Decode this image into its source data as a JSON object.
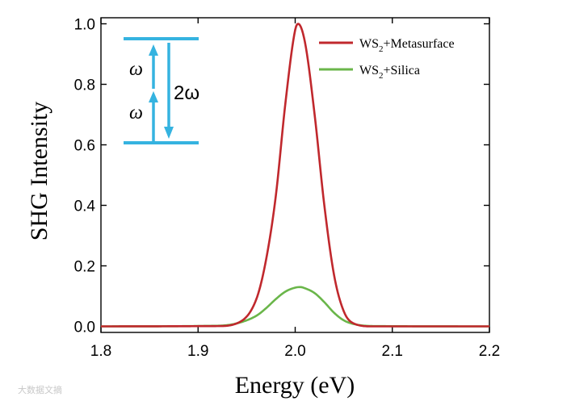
{
  "chart_data": {
    "type": "line",
    "xlabel": "Energy (eV)",
    "ylabel": "SHG Intensity",
    "xlim": [
      1.8,
      2.2
    ],
    "ylim": [
      -0.02,
      1.02
    ],
    "xticks": [
      1.8,
      1.9,
      2.0,
      2.1,
      2.2
    ],
    "xtick_labels": [
      "1.8",
      "1.9",
      "2.0",
      "2.1",
      "2.2"
    ],
    "yticks": [
      0.0,
      0.2,
      0.4,
      0.6,
      0.8,
      1.0
    ],
    "ytick_labels": [
      "0.0",
      "0.2",
      "0.4",
      "0.6",
      "0.8",
      "1.0"
    ],
    "grid": false,
    "legend_position": "top-right",
    "series": [
      {
        "name": "WS2+Metasurface",
        "legend_main": "WS",
        "legend_sub": "2",
        "legend_rest": "+Metasurface",
        "color": "#c0282d",
        "x": [
          1.8,
          1.92,
          1.94,
          1.96,
          1.97,
          1.98,
          1.99,
          2.0,
          2.003,
          2.01,
          2.02,
          2.03,
          2.04,
          2.05,
          2.06,
          2.08,
          2.2
        ],
        "y": [
          0.0,
          0.001,
          0.01,
          0.09,
          0.22,
          0.43,
          0.74,
          0.98,
          1.0,
          0.94,
          0.7,
          0.4,
          0.17,
          0.05,
          0.01,
          0.0,
          0.0
        ]
      },
      {
        "name": "WS2+Silica",
        "legend_main": "WS",
        "legend_sub": "2",
        "legend_rest": "+Silica",
        "color": "#6ab64a",
        "x": [
          1.8,
          1.92,
          1.94,
          1.96,
          1.97,
          1.98,
          1.99,
          2.0,
          2.005,
          2.01,
          2.02,
          2.03,
          2.04,
          2.05,
          2.06,
          2.08,
          2.2
        ],
        "y": [
          0.0,
          0.002,
          0.01,
          0.035,
          0.06,
          0.09,
          0.115,
          0.128,
          0.13,
          0.126,
          0.11,
          0.08,
          0.045,
          0.02,
          0.008,
          0.001,
          0.0
        ]
      }
    ],
    "inset": {
      "label_lower": "ω",
      "label_upper": "ω",
      "label_right": "2ω",
      "color": "#35b3e0"
    }
  },
  "watermark": "大数据文摘"
}
